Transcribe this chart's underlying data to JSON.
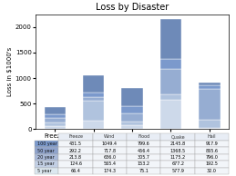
{
  "title": "Loss by Disaster",
  "ylabel": "Loss in $1000's",
  "categories": [
    "Freeze",
    "Wind",
    "Flood",
    "Quake",
    "Hail"
  ],
  "years": [
    "100 year",
    "50 year",
    "20 year",
    "15 year",
    "5 year"
  ],
  "values": {
    "100 year": [
      431.5,
      1049.4,
      799.6,
      2145.8,
      917.9
    ],
    "50 year": [
      292.2,
      717.8,
      456.4,
      1368.5,
      865.6
    ],
    "20 year": [
      213.8,
      636.0,
      305.7,
      1175.2,
      796.0
    ],
    "15 year": [
      124.6,
      565.4,
      153.2,
      677.2,
      192.5
    ],
    "5 year": [
      66.4,
      174.3,
      75.1,
      577.9,
      32.0
    ]
  },
  "year_order": [
    "5 year",
    "15 year",
    "20 year",
    "50 year",
    "100 year"
  ],
  "seg_colors": [
    "#cdd9ea",
    "#b0c3de",
    "#96add2",
    "#7b99cc",
    "#6e8ab8"
  ],
  "ylim": [
    0,
    2250
  ],
  "yticks": [
    0,
    500,
    1000,
    1500,
    2000
  ],
  "table_row_label_colors": [
    "#7b99cc",
    "#8fa3cc",
    "#a8b8d8",
    "#c2cfe4",
    "#dce8f0"
  ],
  "table_cell_color": "#f2f5f9",
  "table_header_color": "#e8edf5",
  "figsize": [
    2.59,
    1.94
  ],
  "dpi": 100
}
